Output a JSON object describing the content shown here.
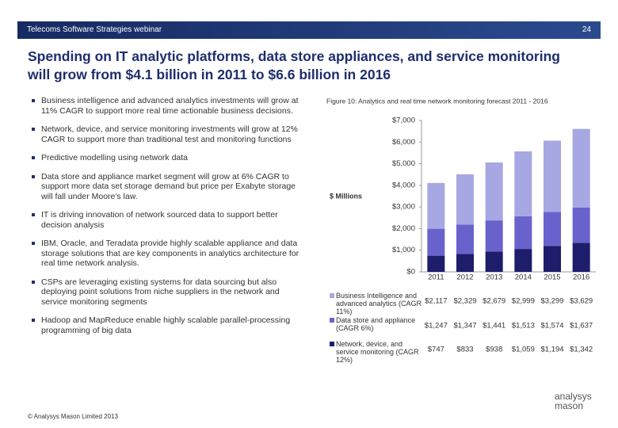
{
  "header": {
    "left": "Telecoms Software Strategies webinar",
    "page": "24"
  },
  "title": "Spending on IT analytic platforms, data store appliances, and service monitoring will grow from $4.1 billion in 2011 to $6.6 billion in 2016",
  "bullets": [
    "Business intelligence and advanced analytics investments will grow at 11% CAGR to support more real time actionable business decisions.",
    "Network, device, and service monitoring investments will grow at 12% CAGR to support more than traditional test and monitoring functions",
    "Predictive modelling using network data",
    "Data store and appliance market segment will grow at 6% CAGR to support more data set storage demand but price per Exabyte storage will fall under Moore's law.",
    "IT is driving innovation of network sourced data to support better decision analysis",
    "IBM, Oracle, and Teradata provide highly scalable appliance and data storage solutions that are key components in analytics architecture for real time network analysis.",
    "CSPs are leveraging existing systems for data sourcing but also deploying point solutions from niche suppliers in the network and service monitoring segments",
    "Hadoop and MapReduce enable highly scalable parallel-processing programming of big data"
  ],
  "footer": "© Analysys Mason Limited 2013",
  "logo": [
    "analysys",
    "mason"
  ],
  "chart_data": {
    "type": "stacked_bar",
    "title": "Figure 10: Analytics and real time network monitoring forecast 2011 - 2016",
    "y_label": "$ Millions",
    "categories": [
      "2011",
      "2012",
      "2013",
      "2014",
      "2015",
      "2016"
    ],
    "series": [
      {
        "name": "Business Intelligence and advanced analytics (CAGR 11%)",
        "color": "#a7a7e3",
        "values": [
          2117,
          2329,
          2679,
          2999,
          3299,
          3629
        ],
        "value_labels": [
          "$2,117",
          "$2,329",
          "$2,679",
          "$2,999",
          "$3,299",
          "$3,629"
        ]
      },
      {
        "name": "Data store and appliance (CAGR 6%)",
        "color": "#6a62cc",
        "values": [
          1247,
          1347,
          1441,
          1513,
          1574,
          1637
        ],
        "value_labels": [
          "$1,247",
          "$1,347",
          "$1,441",
          "$1,513",
          "$1,574",
          "$1,637"
        ]
      },
      {
        "name": "Network, device, and service monitoring (CAGR 12%)",
        "color": "#1d1d6b",
        "values": [
          747,
          833,
          938,
          1059,
          1194,
          1342
        ],
        "value_labels": [
          "$747",
          "$833",
          "$938",
          "$1,059",
          "$1,194",
          "$1,342"
        ]
      }
    ],
    "ylim": [
      0,
      7000
    ],
    "yticks": [
      {
        "value": 0,
        "label": "$0"
      },
      {
        "value": 1000,
        "label": "$1,000"
      },
      {
        "value": 2000,
        "label": "$2,000"
      },
      {
        "value": 3000,
        "label": "$3,000"
      },
      {
        "value": 4000,
        "label": "$4,000"
      },
      {
        "value": 5000,
        "label": "$5,000"
      },
      {
        "value": 6000,
        "label": "$6,000"
      },
      {
        "value": 7000,
        "label": "$7,000"
      }
    ],
    "grid": false
  }
}
